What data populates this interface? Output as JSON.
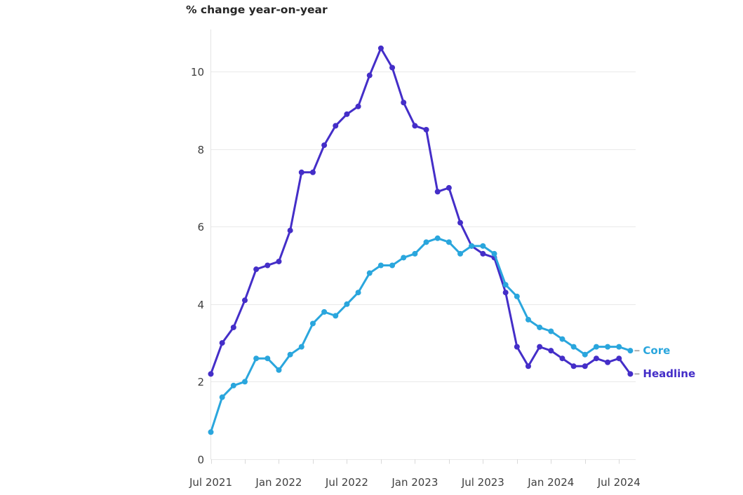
{
  "chart": {
    "title": "% change year-on-year",
    "series_labels": {
      "core": "Core",
      "headline": "Headline"
    }
  },
  "colors": {
    "headline": "#442ec8",
    "core": "#2aa6dd",
    "grid": "#e9e9e9",
    "axis_line": "#e3e3e3",
    "tick": "#d9d9d9",
    "axis_text": "#3f3f3f",
    "title_text": "#262626",
    "label_dash": "#aeaeae",
    "background": "#ffffff"
  },
  "chart_data": {
    "type": "line",
    "title": "% change year-on-year",
    "xlabel": "",
    "ylabel": "% change year-on-year",
    "ylim": [
      0,
      11
    ],
    "yticks": [
      0,
      2,
      4,
      6,
      8,
      10
    ],
    "grid": "horizontal",
    "legend_position": "end-of-line",
    "x_unit": "month",
    "x_tick_every_months": 3,
    "x_label_every_months": 6,
    "x_tick_labels_shown": [
      "Jul 2021",
      "Jan 2022",
      "Jul 2022",
      "Jan 2023",
      "Jul 2023",
      "Jan 2024",
      "Jul 2024"
    ],
    "x": [
      "Jul 2021",
      "Aug 2021",
      "Sep 2021",
      "Oct 2021",
      "Nov 2021",
      "Dec 2021",
      "Jan 2022",
      "Feb 2022",
      "Mar 2022",
      "Apr 2022",
      "May 2022",
      "Jun 2022",
      "Jul 2022",
      "Aug 2022",
      "Sep 2022",
      "Oct 2022",
      "Nov 2022",
      "Dec 2022",
      "Jan 2023",
      "Feb 2023",
      "Mar 2023",
      "Apr 2023",
      "May 2023",
      "Jun 2023",
      "Jul 2023",
      "Aug 2023",
      "Sep 2023",
      "Oct 2023",
      "Nov 2023",
      "Dec 2023",
      "Jan 2024",
      "Feb 2024",
      "Mar 2024",
      "Apr 2024",
      "May 2024",
      "Jun 2024",
      "Jul 2024",
      "Aug 2024"
    ],
    "series": [
      {
        "name": "Headline",
        "color": "#442ec8",
        "values": [
          2.2,
          3.0,
          3.4,
          4.1,
          4.9,
          5.0,
          5.1,
          5.9,
          7.4,
          7.4,
          8.1,
          8.6,
          8.9,
          9.1,
          9.9,
          10.6,
          10.1,
          9.2,
          8.6,
          8.5,
          6.9,
          7.0,
          6.1,
          5.5,
          5.3,
          5.2,
          4.3,
          2.9,
          2.4,
          2.9,
          2.8,
          2.6,
          2.4,
          2.4,
          2.6,
          2.5,
          2.6,
          2.2
        ]
      },
      {
        "name": "Core",
        "color": "#2aa6dd",
        "values": [
          0.7,
          1.6,
          1.9,
          2.0,
          2.6,
          2.6,
          2.3,
          2.7,
          2.9,
          3.5,
          3.8,
          3.7,
          4.0,
          4.3,
          4.8,
          5.0,
          5.0,
          5.2,
          5.3,
          5.6,
          5.7,
          5.6,
          5.3,
          5.5,
          5.5,
          5.3,
          4.5,
          4.2,
          3.6,
          3.4,
          3.3,
          3.1,
          2.9,
          2.7,
          2.9,
          2.9,
          2.9,
          2.8
        ]
      }
    ]
  }
}
